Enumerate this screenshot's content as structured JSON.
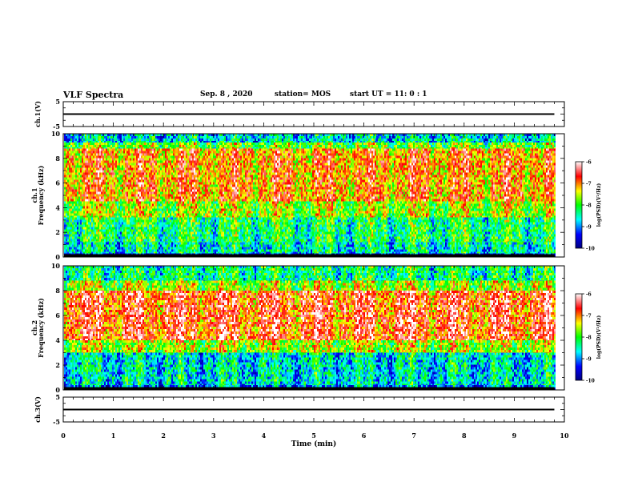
{
  "header": {
    "title": "VLF Spectra",
    "date": "Sep. 8 , 2020",
    "station": "station= MOS",
    "start": "start  UT =   11: 0  : 1"
  },
  "chart_data": [
    {
      "type": "line",
      "panel": "ch1-waveform",
      "ylabel": "ch.1(V)",
      "ylim": [
        -5,
        5
      ],
      "yticks": [
        "5",
        "-5"
      ],
      "xlim": [
        0,
        10
      ],
      "series": [
        {
          "x": [
            0,
            9.8
          ],
          "values": [
            0,
            0
          ]
        }
      ]
    },
    {
      "type": "heatmap",
      "panel": "ch1-spectrogram",
      "ylabel": "ch.1\nFrequency (kHz)",
      "ylim": [
        0,
        10
      ],
      "yticks": [
        "0",
        "2",
        "4",
        "6",
        "8",
        "10"
      ],
      "xlim": [
        0,
        9.8
      ],
      "colorbar": {
        "label": "log(PSD)(V²/Hz)",
        "range": [
          -10,
          -6
        ],
        "ticks": [
          "-6",
          "-7",
          "-8",
          "-9",
          "-10"
        ],
        "colormap": [
          "#000080",
          "#0000ff",
          "#00ffff",
          "#00ff00",
          "#ffff00",
          "#ff0000",
          "#ffffff"
        ]
      },
      "bands": [
        {
          "f": [
            0,
            0.3
          ],
          "level": -9.5
        },
        {
          "f": [
            0.3,
            1.2
          ],
          "level": -8.5
        },
        {
          "f": [
            1.2,
            3.2
          ],
          "level": -8.2
        },
        {
          "f": [
            3.2,
            4.5
          ],
          "level": -7.6
        },
        {
          "f": [
            4.5,
            8.8
          ],
          "level": -7.0
        },
        {
          "f": [
            8.8,
            9.3
          ],
          "level": -7.8
        },
        {
          "f": [
            9.3,
            10
          ],
          "level": -8.6
        }
      ]
    },
    {
      "type": "heatmap",
      "panel": "ch2-spectrogram",
      "ylabel": "ch.2\nFrequency (kHz)",
      "ylim": [
        0,
        10
      ],
      "yticks": [
        "0",
        "2",
        "4",
        "6",
        "8",
        "10"
      ],
      "xlim": [
        0,
        9.8
      ],
      "colorbar": {
        "label": "log(PSD)(V²/Hz)",
        "range": [
          -10,
          -6
        ],
        "ticks": [
          "-6",
          "-7",
          "-8",
          "-9",
          "-10"
        ],
        "colormap": [
          "#000080",
          "#0000ff",
          "#00ffff",
          "#00ff00",
          "#ffff00",
          "#ff0000",
          "#ffffff"
        ]
      },
      "bands": [
        {
          "f": [
            0,
            0.4
          ],
          "level": -9.0
        },
        {
          "f": [
            0.4,
            3.0
          ],
          "level": -8.6
        },
        {
          "f": [
            3.0,
            4.0
          ],
          "level": -7.6
        },
        {
          "f": [
            4.0,
            8.0
          ],
          "level": -6.7
        },
        {
          "f": [
            8.0,
            8.8
          ],
          "level": -7.6
        },
        {
          "f": [
            8.8,
            10
          ],
          "level": -8.3
        }
      ]
    },
    {
      "type": "line",
      "panel": "ch3-waveform",
      "ylabel": "ch.3(V)",
      "ylim": [
        -5,
        5
      ],
      "yticks": [
        "5",
        "-5"
      ],
      "xlim": [
        0,
        10
      ],
      "xlabel": "Time (min)",
      "xticks": [
        "0",
        "1",
        "2",
        "3",
        "4",
        "5",
        "6",
        "7",
        "8",
        "9",
        "10"
      ],
      "series": [
        {
          "x": [
            0,
            9.8
          ],
          "values": [
            0,
            0
          ]
        }
      ]
    }
  ]
}
